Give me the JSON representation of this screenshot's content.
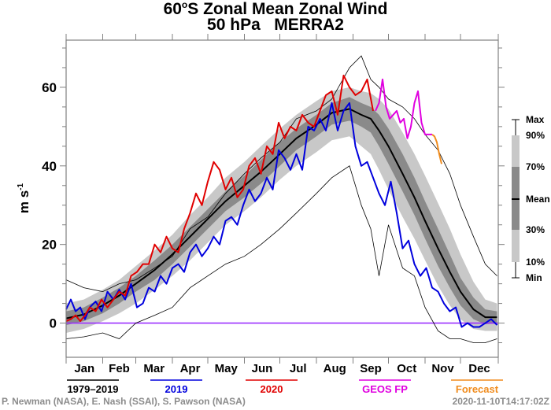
{
  "chart_data": {
    "type": "line",
    "title": "60°S Zonal Mean Zonal Wind",
    "title_parts": {
      "lat": "60",
      "deg": "o",
      "rest": "S Zonal Mean Zonal Wind"
    },
    "subtitle": "50 hPa   MERRA2",
    "ylabel": "m s",
    "ylabel_sup": "-1",
    "xlabel": "",
    "ylim": [
      -8.7,
      72
    ],
    "xlim_days": [
      0,
      366
    ],
    "yticks": [
      0,
      20,
      40,
      60
    ],
    "ytick_labels": [
      "0",
      "20",
      "40",
      "60"
    ],
    "yminor_step": 5,
    "months": [
      "Jan",
      "Feb",
      "Mar",
      "Apr",
      "May",
      "Jun",
      "Jul",
      "Aug",
      "Sep",
      "Oct",
      "Nov",
      "Dec"
    ],
    "month_starts": [
      0,
      31,
      59,
      90,
      120,
      151,
      181,
      212,
      243,
      273,
      304,
      334,
      366
    ],
    "zero_line_color": "#9b30ff",
    "climatology": {
      "name": "1979–2019",
      "days": [
        0,
        15,
        31,
        45,
        59,
        75,
        90,
        105,
        120,
        135,
        151,
        165,
        181,
        195,
        212,
        225,
        240,
        250,
        258,
        265,
        273,
        285,
        295,
        304,
        315,
        325,
        334,
        345,
        355,
        365
      ],
      "mean": [
        1.2,
        2.2,
        4.5,
        7,
        10,
        13.5,
        17.5,
        22,
        26.5,
        31,
        35,
        38.5,
        43,
        47,
        50.5,
        53.5,
        54.5,
        53,
        52,
        49,
        45,
        38,
        32,
        26,
        19,
        13,
        8,
        3.5,
        1.5,
        1.5
      ],
      "p30": [
        -0.5,
        0.5,
        2.5,
        5,
        8,
        11,
        15,
        19.5,
        24,
        28.5,
        32,
        35.5,
        40,
        44,
        47.5,
        50.5,
        51.5,
        50,
        48.5,
        45,
        40.5,
        33.5,
        27.5,
        21.5,
        14.5,
        9,
        4.5,
        1,
        -0.3,
        0
      ],
      "p70": [
        3,
        4,
        6.5,
        9,
        12,
        16,
        20,
        24.5,
        29,
        33.5,
        37.5,
        41.5,
        46,
        49.5,
        53,
        56,
        57.5,
        56,
        55,
        53,
        49.5,
        43,
        37,
        31,
        24,
        17.5,
        11.5,
        6.5,
        3.5,
        3
      ],
      "p10": [
        -2.5,
        -1.5,
        0.5,
        2.5,
        5,
        8.5,
        12,
        16,
        20.5,
        25,
        28.5,
        32,
        36.5,
        40,
        43.5,
        46.5,
        47.5,
        45,
        43,
        39,
        34,
        27,
        21.5,
        16,
        9.5,
        4.5,
        1,
        -1.5,
        -2,
        -2
      ],
      "p90": [
        5,
        6,
        8.5,
        11,
        14.5,
        18.5,
        22.5,
        27.5,
        32,
        37,
        41,
        45,
        49.5,
        53,
        56.5,
        59,
        60,
        59,
        58.5,
        57,
        54.5,
        48.5,
        43,
        37.5,
        30.5,
        24,
        17.5,
        10.5,
        6,
        5
      ],
      "max": [
        11,
        9,
        8,
        10,
        11,
        14,
        17,
        24,
        27,
        33,
        38,
        42,
        46,
        52,
        54,
        57,
        65,
        68,
        62,
        60,
        57,
        55,
        52,
        48,
        44,
        38,
        30,
        22,
        15,
        12
      ],
      "min": [
        -4,
        -3.5,
        -2.5,
        -4,
        0,
        2,
        4,
        9,
        12,
        15,
        17,
        20,
        24,
        28,
        33,
        37,
        40,
        30,
        24,
        12,
        25,
        14,
        12,
        4,
        -2,
        -4,
        -4,
        -5,
        -5,
        -4
      ]
    },
    "series": [
      {
        "name": "2019",
        "color": "#0000dd",
        "days": [
          0,
          4,
          8,
          12,
          16,
          20,
          25,
          30,
          35,
          40,
          45,
          50,
          55,
          60,
          65,
          70,
          75,
          80,
          85,
          90,
          95,
          100,
          105,
          110,
          115,
          120,
          125,
          130,
          135,
          140,
          145,
          150,
          155,
          160,
          165,
          170,
          175,
          180,
          185,
          190,
          195,
          200,
          205,
          210,
          215,
          220,
          225,
          230,
          235,
          240,
          245,
          250,
          255,
          260,
          265,
          270,
          275,
          280,
          285,
          290,
          295,
          300,
          305,
          310,
          315,
          320,
          325,
          330,
          335,
          340,
          345,
          350,
          355,
          360,
          365
        ],
        "values": [
          3.5,
          6,
          3,
          4,
          1,
          4,
          5.5,
          3,
          8,
          6,
          8.5,
          6,
          10,
          4,
          5,
          9,
          8,
          12,
          10,
          14,
          15,
          13,
          18,
          20,
          17,
          19,
          22,
          20,
          26,
          27,
          25,
          30,
          34,
          31,
          33,
          37,
          34,
          44,
          42,
          39,
          43,
          39,
          50,
          49,
          52,
          49,
          56,
          49,
          54,
          56,
          45,
          40,
          41,
          37,
          33,
          30,
          36,
          28,
          19,
          21,
          15,
          12,
          14,
          9,
          8,
          5,
          3,
          4,
          -1,
          0,
          -1,
          -1,
          0,
          1,
          -0.5
        ]
      },
      {
        "name": "2020",
        "color": "#e00000",
        "days": [
          0,
          4,
          8,
          12,
          16,
          20,
          25,
          30,
          35,
          40,
          45,
          50,
          55,
          60,
          65,
          70,
          75,
          80,
          85,
          90,
          95,
          100,
          105,
          110,
          115,
          120,
          125,
          130,
          135,
          140,
          145,
          150,
          155,
          160,
          165,
          170,
          175,
          180,
          185,
          190,
          195,
          200,
          205,
          210,
          215,
          220,
          225,
          230,
          235,
          240,
          245,
          250,
          255,
          260,
          265,
          270,
          275,
          280,
          285,
          290,
          295,
          300,
          305,
          310
        ],
        "values": [
          0.5,
          1,
          2,
          0.5,
          2,
          4,
          3,
          6,
          4,
          6,
          8,
          7,
          12,
          13,
          15,
          15,
          20,
          18,
          22,
          19,
          18,
          24,
          28,
          33,
          30,
          36,
          41,
          39,
          34,
          37,
          32,
          34,
          40,
          42,
          38,
          45,
          43,
          51,
          47,
          50,
          49,
          53,
          51,
          50,
          54,
          58,
          59,
          53,
          63,
          60,
          58,
          59,
          62,
          54,
          null,
          null,
          null,
          null,
          null,
          null,
          null,
          null,
          null,
          null
        ]
      },
      {
        "name": "GEOS FP",
        "color": "#e000e0",
        "days": [
          262,
          265,
          268,
          271,
          274,
          277,
          280,
          283,
          286,
          289,
          292,
          295,
          298,
          301,
          304,
          307,
          310
        ],
        "values": [
          54,
          56,
          62,
          55,
          52,
          53,
          54,
          51,
          52,
          47,
          50,
          56,
          59,
          51,
          48,
          48,
          48
        ]
      },
      {
        "name": "Forecast",
        "color": "#f08c1e",
        "days": [
          310,
          312,
          314,
          316,
          318
        ],
        "values": [
          48,
          47.5,
          46,
          43,
          40.5
        ]
      }
    ],
    "legend": [
      {
        "label": "1979–2019",
        "color": "#000000"
      },
      {
        "label": "2019",
        "color": "#0000dd"
      },
      {
        "label": "2020",
        "color": "#e00000"
      },
      {
        "label": "GEOS FP",
        "color": "#e000e0"
      },
      {
        "label": "Forecast",
        "color": "#f08c1e"
      }
    ],
    "legend_position": "bottom",
    "percentile_key": {
      "labels": [
        "Max",
        "90%",
        "70%",
        "Mean",
        "30%",
        "10%",
        "Min"
      ],
      "light_gray": "#c8c8c8",
      "dark_gray": "#8a8a8a",
      "position": "right"
    }
  },
  "footer": {
    "credit": "P. Newman (NASA), E. Nash (SSAI), S. Pawson (NASA)",
    "timestamp": "2020-11-10T14:17:02Z"
  }
}
